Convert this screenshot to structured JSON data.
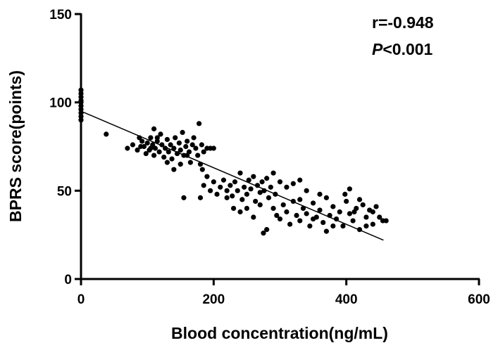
{
  "chart_data": {
    "type": "scatter",
    "x_label": "Blood concentration(ng/mL)",
    "y_label": "BPRS score(points)",
    "annotations": [
      "r=-0.948",
      "P<0.001"
    ],
    "xlim": [
      0,
      600
    ],
    "ylim": [
      0,
      150
    ],
    "xticks": [
      0,
      200,
      400,
      600
    ],
    "yticks": [
      0,
      50,
      100,
      150
    ],
    "color": "#000000",
    "x": [
      0,
      0,
      0,
      0,
      0,
      0,
      0,
      0,
      0,
      0,
      38,
      70,
      78,
      85,
      88,
      92,
      95,
      98,
      100,
      103,
      105,
      108,
      110,
      112,
      115,
      118,
      120,
      122,
      125,
      127,
      130,
      132,
      135,
      137,
      140,
      142,
      145,
      148,
      150,
      153,
      155,
      158,
      160,
      163,
      165,
      168,
      170,
      173,
      176,
      178,
      182,
      185,
      190,
      195,
      200,
      110,
      130,
      150,
      180,
      183,
      140,
      115,
      105,
      160,
      90,
      155,
      180,
      185,
      190,
      195,
      200,
      205,
      210,
      215,
      220,
      225,
      228,
      232,
      236,
      240,
      243,
      246,
      250,
      253,
      256,
      260,
      263,
      266,
      270,
      273,
      276,
      280,
      283,
      286,
      290,
      293,
      240,
      250,
      260,
      270,
      280,
      275,
      230,
      220,
      300,
      310,
      320,
      330,
      340,
      290,
      295,
      300,
      305,
      310,
      315,
      320,
      325,
      330,
      335,
      340,
      345,
      350,
      355,
      360,
      365,
      370,
      375,
      380,
      385,
      390,
      395,
      400,
      405,
      410,
      415,
      420,
      425,
      430,
      435,
      440,
      445,
      450,
      455,
      405,
      398,
      360,
      330,
      370,
      412,
      380,
      350,
      440,
      420,
      430,
      460
    ],
    "y": [
      90,
      92,
      94,
      96,
      98,
      100,
      101,
      103,
      105,
      107,
      82,
      74,
      76,
      73,
      80,
      78,
      75,
      71,
      77,
      73,
      80,
      76,
      70,
      74,
      78,
      72,
      82,
      76,
      69,
      74,
      79,
      72,
      76,
      68,
      74,
      80,
      71,
      77,
      73,
      83,
      70,
      75,
      78,
      72,
      66,
      76,
      80,
      74,
      70,
      88,
      76,
      72,
      74,
      74,
      74,
      85,
      66,
      65,
      65,
      62,
      62,
      80,
      74,
      70,
      75,
      46,
      46,
      53,
      58,
      50,
      55,
      48,
      52,
      56,
      50,
      53,
      47,
      55,
      50,
      60,
      45,
      52,
      48,
      56,
      51,
      58,
      44,
      53,
      49,
      55,
      50,
      57,
      46,
      52,
      60,
      48,
      38,
      40,
      35,
      42,
      28,
      26,
      40,
      46,
      55,
      52,
      54,
      56,
      50,
      40,
      36,
      34,
      42,
      38,
      31,
      44,
      36,
      33,
      40,
      37,
      30,
      43,
      35,
      39,
      32,
      46,
      36,
      41,
      34,
      38,
      30,
      44,
      37,
      33,
      40,
      28,
      42,
      35,
      39,
      31,
      41,
      35,
      33,
      51,
      48,
      48,
      45,
      27,
      38,
      30,
      34,
      38,
      45,
      30,
      33
    ],
    "fit_line": {
      "x": [
        0,
        456
      ],
      "y": [
        95,
        22
      ]
    }
  }
}
